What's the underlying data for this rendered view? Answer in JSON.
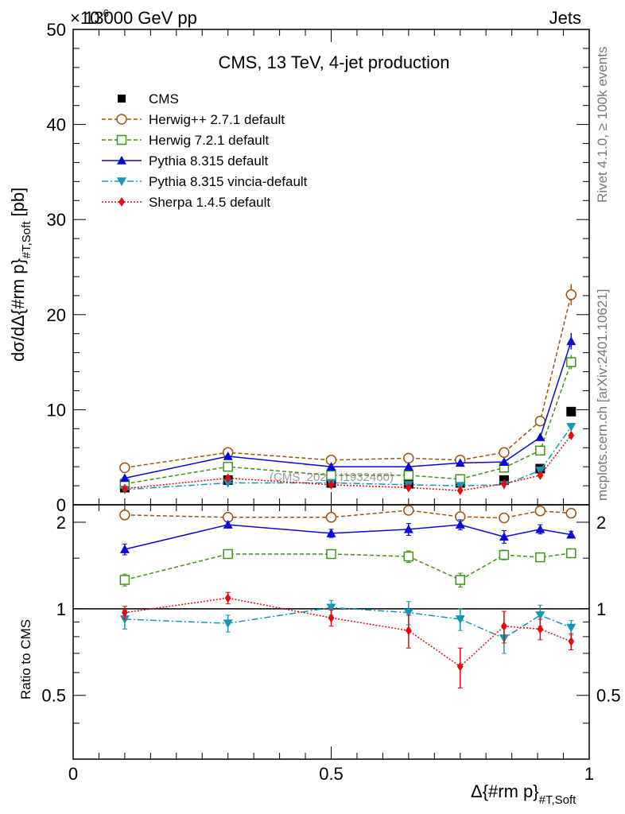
{
  "header": {
    "energy_label": "13000 GeV pp",
    "exponent_label": "×10",
    "exponent_power": "-6",
    "category": "Jets"
  },
  "side_labels": {
    "rivet": "Rivet 4.1.0, ≥ 100k events",
    "mcplots": "mcplots.cern.ch [arXiv:2401.10621]"
  },
  "chart_data": {
    "type": "line",
    "title": "CMS, 13 TeV, 4-jet production",
    "watermark": "(CMS_2021_I1932460)",
    "xlabel_main": "Δ{#rm p}",
    "xlabel_sub": "#T,Soft",
    "ylabel_main": "dσ/dΔ{#rm p}",
    "ylabel_sub": "#T,Soft",
    "ylabel_unit": "[pb]",
    "ratio_ylabel": "Ratio to CMS",
    "xlim": [
      0,
      1
    ],
    "ylim": [
      0,
      50
    ],
    "ratio_ylim": [
      0.3,
      2.3
    ],
    "x_ticks": [
      0,
      0.5,
      1
    ],
    "x_tick_labels": [
      "0",
      "0.5",
      "1"
    ],
    "y_ticks": [
      0,
      10,
      20,
      30,
      40,
      50
    ],
    "y_tick_labels": [
      "0",
      "10",
      "20",
      "30",
      "40",
      "50"
    ],
    "ratio_ticks": [
      0.5,
      1,
      2
    ],
    "ratio_tick_labels": [
      "0.5",
      "1",
      "2"
    ],
    "x": [
      0.1,
      0.3,
      0.5,
      0.65,
      0.75,
      0.835,
      0.905,
      0.965
    ],
    "series": [
      {
        "name": "CMS",
        "color": "#000000",
        "marker": "square-filled",
        "dash": "none",
        "values": [
          1.8,
          2.6,
          2.3,
          2.2,
          2.3,
          2.6,
          3.8,
          9.8
        ],
        "ratio": [
          1.0,
          1.0,
          1.0,
          1.0,
          1.0,
          1.0,
          1.0,
          1.0
        ],
        "ratio_err": [
          0,
          0,
          0,
          0,
          0,
          0,
          0,
          0
        ]
      },
      {
        "name": "Herwig++ 2.7.1 default",
        "color": "#a0520a",
        "marker": "circle-open",
        "dash": "5,3",
        "values": [
          3.9,
          5.5,
          4.7,
          4.9,
          4.7,
          5.5,
          8.8,
          22.1
        ],
        "ratio": [
          2.12,
          2.08,
          2.08,
          2.2,
          2.09,
          2.07,
          2.19,
          2.15
        ],
        "ratio_err": [
          0.05,
          0.04,
          0.06,
          0.05,
          0.05,
          0.06,
          0.05,
          0.06
        ]
      },
      {
        "name": "Herwig 7.2.1 default",
        "color": "#3f9514",
        "marker": "square-open",
        "dash": "5,3",
        "values": [
          2.2,
          4.0,
          3.1,
          3.1,
          2.7,
          3.9,
          5.7,
          15.0
        ],
        "ratio": [
          1.26,
          1.55,
          1.55,
          1.52,
          1.26,
          1.54,
          1.51,
          1.56
        ],
        "ratio_err": [
          0.06,
          0.05,
          0.05,
          0.07,
          0.07,
          0.06,
          0.05,
          0.05
        ]
      },
      {
        "name": "Pythia 8.315 default",
        "color": "#0a0ad6",
        "marker": "triangle-up",
        "dash": "none",
        "values": [
          2.8,
          5.1,
          4.0,
          4.0,
          4.4,
          4.5,
          7.1,
          17.2
        ],
        "ratio": [
          1.61,
          1.96,
          1.83,
          1.89,
          1.96,
          1.78,
          1.89,
          1.81
        ],
        "ratio_err": [
          0.07,
          0.05,
          0.06,
          0.09,
          0.08,
          0.09,
          0.07,
          0.05
        ]
      },
      {
        "name": "Pythia 8.315 vincia-default",
        "color": "#1396b8",
        "marker": "triangle-down",
        "dash": "8,3,2,3",
        "values": [
          1.6,
          2.3,
          2.3,
          2.1,
          2.0,
          2.1,
          3.6,
          8.2
        ],
        "ratio": [
          0.92,
          0.89,
          1.01,
          0.97,
          0.92,
          0.79,
          0.95,
          0.86
        ],
        "ratio_err": [
          0.07,
          0.06,
          0.06,
          0.09,
          0.08,
          0.09,
          0.08,
          0.05
        ]
      },
      {
        "name": "Sherpa 1.4.5 default",
        "color": "#e8080d",
        "marker": "diamond",
        "dash": "2,2",
        "values": [
          1.7,
          2.8,
          2.1,
          1.8,
          1.5,
          2.2,
          3.1,
          7.3
        ],
        "ratio": [
          0.97,
          1.09,
          0.93,
          0.84,
          0.63,
          0.87,
          0.85,
          0.77
        ],
        "ratio_err": [
          0.05,
          0.05,
          0.06,
          0.11,
          0.1,
          0.11,
          0.07,
          0.05
        ]
      }
    ]
  }
}
